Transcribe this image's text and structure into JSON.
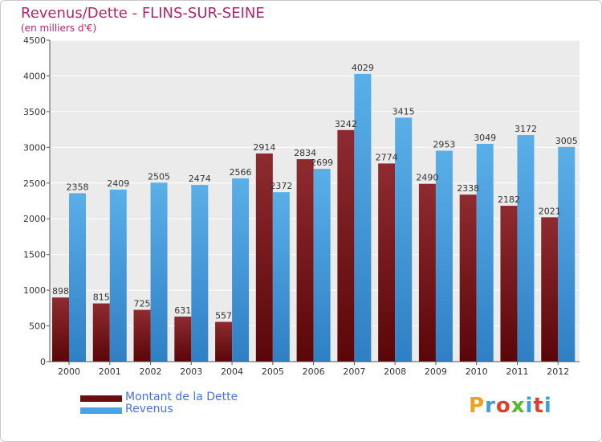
{
  "chart_data": {
    "type": "bar",
    "title": "Revenus/Dette - FLINS-SUR-SEINE",
    "subtitle": "(en milliers d'€)",
    "xlabel": "",
    "ylabel": "",
    "ylim": [
      0,
      4500
    ],
    "yticks": [
      0,
      500,
      1000,
      1500,
      2000,
      2500,
      3000,
      3500,
      4000,
      4500
    ],
    "grid": true,
    "legend_position": "bottom-left",
    "categories": [
      "2000",
      "2001",
      "2002",
      "2003",
      "2004",
      "2005",
      "2006",
      "2007",
      "2008",
      "2009",
      "2010",
      "2011",
      "2012"
    ],
    "series": [
      {
        "name": "Montant de la Dette",
        "color": "#7a1a1e",
        "values": [
          898,
          815,
          725,
          631,
          557,
          2914,
          2834,
          3242,
          2774,
          2490,
          2338,
          2182,
          2021
        ]
      },
      {
        "name": "Revenus",
        "color": "#4aa3e4",
        "values": [
          2358,
          2409,
          2505,
          2474,
          2566,
          2372,
          2699,
          4029,
          3415,
          2953,
          3049,
          3172,
          3005
        ]
      }
    ]
  },
  "logo": {
    "text": "Proxiti",
    "colors": [
      "#f0a020",
      "#3aa0d8",
      "#e0402a",
      "#5ab82c",
      "#3aa0d8",
      "#e0402a",
      "#3aa0d8"
    ]
  }
}
